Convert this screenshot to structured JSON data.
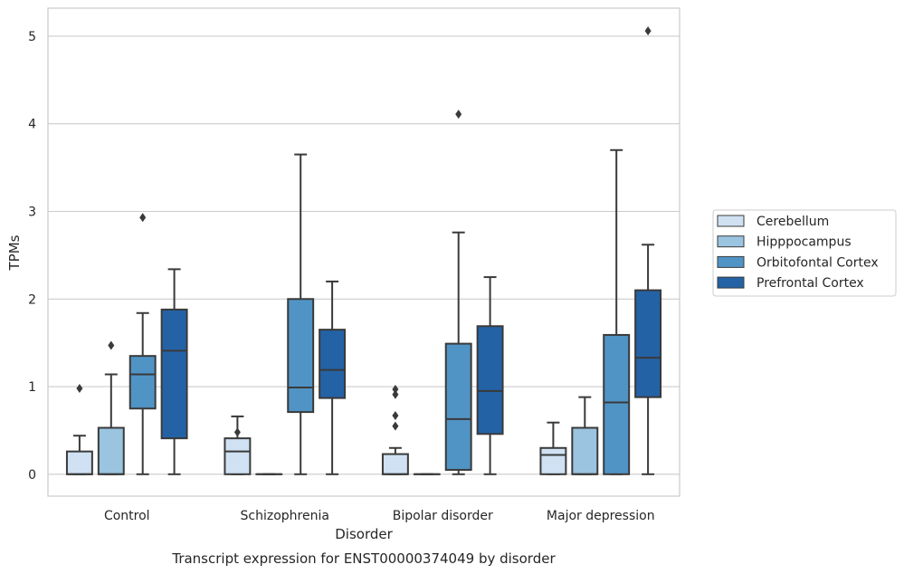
{
  "chart_data": {
    "type": "box",
    "xlabel": "Disorder",
    "ylabel": "TPMs",
    "caption": "Transcript expression for ENST00000374049 by disorder",
    "ylim": [
      -0.25,
      5.32
    ],
    "yticks": [
      "0",
      "1",
      "2",
      "3",
      "4",
      "5"
    ],
    "grid": true,
    "legend_position": "right",
    "categories": [
      "Control",
      "Schizophrenia",
      "Bipolar disorder",
      "Major depression"
    ],
    "series": [
      {
        "name": "Cerebellum",
        "color": "#cfe1f2",
        "boxes": [
          {
            "whisker_low": 0,
            "q1": 0,
            "median": 0,
            "q3": 0.26,
            "whisker_high": 0.44,
            "outliers": [
              0.98
            ]
          },
          {
            "whisker_low": 0,
            "q1": 0,
            "median": 0.26,
            "q3": 0.41,
            "whisker_high": 0.66,
            "outliers": [
              0.48
            ]
          },
          {
            "whisker_low": 0,
            "q1": 0,
            "median": 0,
            "q3": 0.23,
            "whisker_high": 0.3,
            "outliers": [
              0.55,
              0.67,
              0.91,
              0.97
            ]
          },
          {
            "whisker_low": 0,
            "q1": 0,
            "median": 0.22,
            "q3": 0.3,
            "whisker_high": 0.59,
            "outliers": []
          }
        ]
      },
      {
        "name": "Hipppocampus",
        "color": "#9ac4e0",
        "boxes": [
          {
            "whisker_low": 0,
            "q1": 0,
            "median": 0,
            "q3": 0.53,
            "whisker_high": 1.14,
            "outliers": [
              1.47
            ]
          },
          {
            "whisker_low": 0,
            "q1": 0,
            "median": 0,
            "q3": 0,
            "whisker_high": 0,
            "outliers": []
          },
          {
            "whisker_low": 0,
            "q1": 0,
            "median": 0,
            "q3": 0,
            "whisker_high": 0,
            "outliers": []
          },
          {
            "whisker_low": 0,
            "q1": 0,
            "median": 0,
            "q3": 0.53,
            "whisker_high": 0.88,
            "outliers": []
          }
        ]
      },
      {
        "name": "Orbitofontal Cortex",
        "color": "#5094c5",
        "boxes": [
          {
            "whisker_low": 0,
            "q1": 0.75,
            "median": 1.14,
            "q3": 1.35,
            "whisker_high": 1.84,
            "outliers": [
              2.93
            ]
          },
          {
            "whisker_low": 0,
            "q1": 0.71,
            "median": 0.99,
            "q3": 2.0,
            "whisker_high": 3.65,
            "outliers": []
          },
          {
            "whisker_low": 0,
            "q1": 0.05,
            "median": 0.63,
            "q3": 1.49,
            "whisker_high": 2.76,
            "outliers": [
              4.11
            ]
          },
          {
            "whisker_low": 0,
            "q1": 0,
            "median": 0.82,
            "q3": 1.59,
            "whisker_high": 3.7,
            "outliers": []
          }
        ]
      },
      {
        "name": "Prefrontal Cortex",
        "color": "#2462a6",
        "boxes": [
          {
            "whisker_low": 0,
            "q1": 0.41,
            "median": 1.41,
            "q3": 1.88,
            "whisker_high": 2.34,
            "outliers": []
          },
          {
            "whisker_low": 0,
            "q1": 0.87,
            "median": 1.19,
            "q3": 1.65,
            "whisker_high": 2.2,
            "outliers": []
          },
          {
            "whisker_low": 0,
            "q1": 0.46,
            "median": 0.95,
            "q3": 1.69,
            "whisker_high": 2.25,
            "outliers": []
          },
          {
            "whisker_low": 0,
            "q1": 0.88,
            "median": 1.33,
            "q3": 2.1,
            "whisker_high": 2.62,
            "outliers": [
              5.06
            ]
          }
        ]
      }
    ]
  }
}
